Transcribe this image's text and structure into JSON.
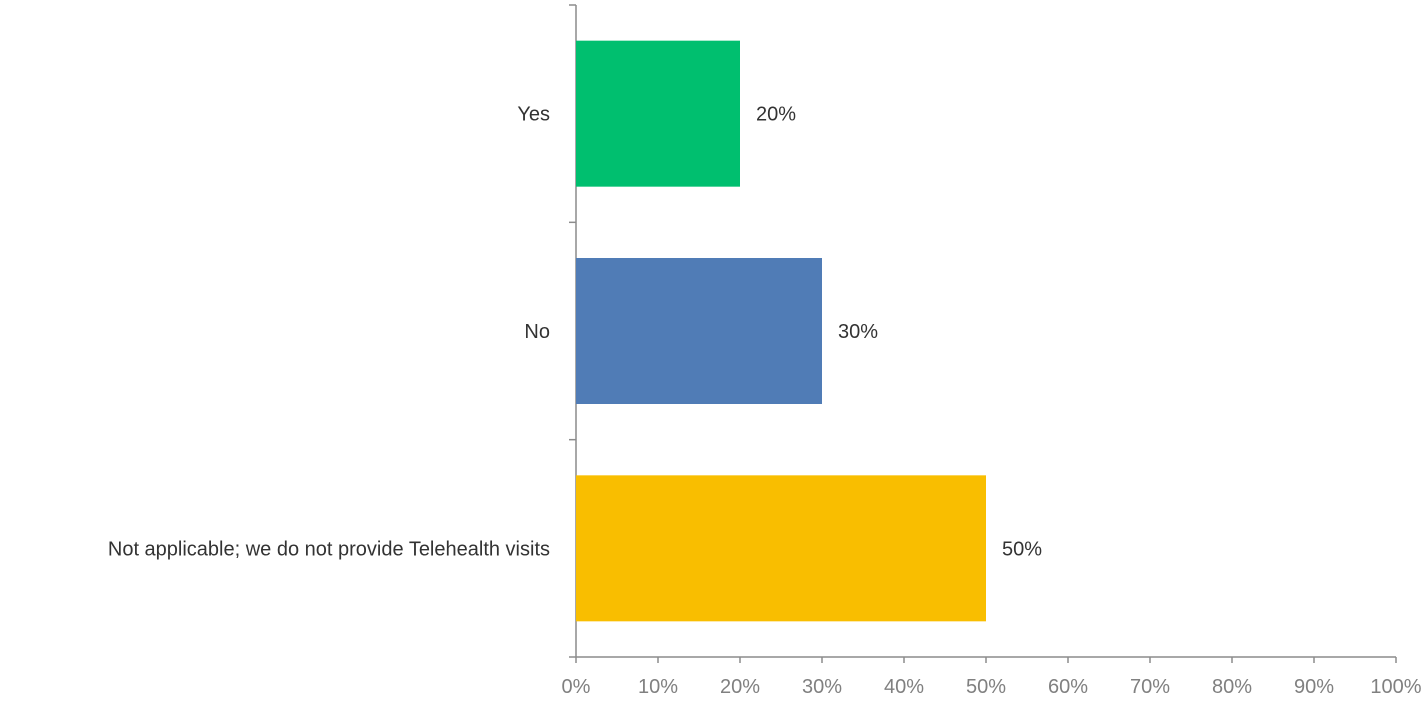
{
  "chart_data": {
    "type": "bar",
    "orientation": "horizontal",
    "categories": [
      "Yes",
      "No",
      "Not applicable; we do not provide Telehealth visits"
    ],
    "values": [
      20,
      30,
      50
    ],
    "value_labels": [
      "20%",
      "30%",
      "50%"
    ],
    "colors": [
      "#00BF6F",
      "#507CB6",
      "#F9BE00"
    ],
    "xlim": [
      0,
      100
    ],
    "x_ticks": [
      0,
      10,
      20,
      30,
      40,
      50,
      60,
      70,
      80,
      90,
      100
    ],
    "x_tick_labels": [
      "0%",
      "10%",
      "20%",
      "30%",
      "40%",
      "50%",
      "60%",
      "70%",
      "80%",
      "90%",
      "100%"
    ],
    "grid": false,
    "legend": "none",
    "title": "",
    "xlabel": "",
    "ylabel": ""
  }
}
